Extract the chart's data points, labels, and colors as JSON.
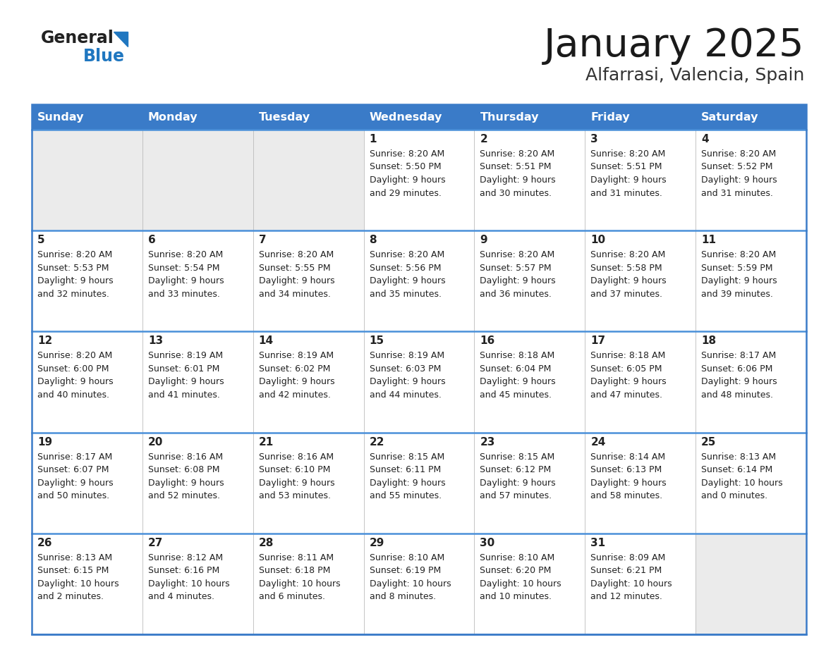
{
  "title": "January 2025",
  "subtitle": "Alfarrasi, Valencia, Spain",
  "days_of_week": [
    "Sunday",
    "Monday",
    "Tuesday",
    "Wednesday",
    "Thursday",
    "Friday",
    "Saturday"
  ],
  "header_bg": "#3A7BC8",
  "header_text_color": "#FFFFFF",
  "cell_bg_empty": "#EBEBEB",
  "cell_bg_data": "#FFFFFF",
  "cell_bg_alt": "#F5F5F5",
  "border_color": "#3A7BC8",
  "row_line_color": "#4A90D9",
  "text_color": "#222222",
  "title_color": "#1a1a1a",
  "subtitle_color": "#333333",
  "logo_general_color": "#222222",
  "logo_blue_color": "#2077C0",
  "weeks": [
    [
      {
        "day": null,
        "sunrise": null,
        "sunset": null,
        "daylight_line1": null,
        "daylight_line2": null
      },
      {
        "day": null,
        "sunrise": null,
        "sunset": null,
        "daylight_line1": null,
        "daylight_line2": null
      },
      {
        "day": null,
        "sunrise": null,
        "sunset": null,
        "daylight_line1": null,
        "daylight_line2": null
      },
      {
        "day": 1,
        "sunrise": "8:20 AM",
        "sunset": "5:50 PM",
        "daylight_line1": "9 hours",
        "daylight_line2": "and 29 minutes."
      },
      {
        "day": 2,
        "sunrise": "8:20 AM",
        "sunset": "5:51 PM",
        "daylight_line1": "9 hours",
        "daylight_line2": "and 30 minutes."
      },
      {
        "day": 3,
        "sunrise": "8:20 AM",
        "sunset": "5:51 PM",
        "daylight_line1": "9 hours",
        "daylight_line2": "and 31 minutes."
      },
      {
        "day": 4,
        "sunrise": "8:20 AM",
        "sunset": "5:52 PM",
        "daylight_line1": "9 hours",
        "daylight_line2": "and 31 minutes."
      }
    ],
    [
      {
        "day": 5,
        "sunrise": "8:20 AM",
        "sunset": "5:53 PM",
        "daylight_line1": "9 hours",
        "daylight_line2": "and 32 minutes."
      },
      {
        "day": 6,
        "sunrise": "8:20 AM",
        "sunset": "5:54 PM",
        "daylight_line1": "9 hours",
        "daylight_line2": "and 33 minutes."
      },
      {
        "day": 7,
        "sunrise": "8:20 AM",
        "sunset": "5:55 PM",
        "daylight_line1": "9 hours",
        "daylight_line2": "and 34 minutes."
      },
      {
        "day": 8,
        "sunrise": "8:20 AM",
        "sunset": "5:56 PM",
        "daylight_line1": "9 hours",
        "daylight_line2": "and 35 minutes."
      },
      {
        "day": 9,
        "sunrise": "8:20 AM",
        "sunset": "5:57 PM",
        "daylight_line1": "9 hours",
        "daylight_line2": "and 36 minutes."
      },
      {
        "day": 10,
        "sunrise": "8:20 AM",
        "sunset": "5:58 PM",
        "daylight_line1": "9 hours",
        "daylight_line2": "and 37 minutes."
      },
      {
        "day": 11,
        "sunrise": "8:20 AM",
        "sunset": "5:59 PM",
        "daylight_line1": "9 hours",
        "daylight_line2": "and 39 minutes."
      }
    ],
    [
      {
        "day": 12,
        "sunrise": "8:20 AM",
        "sunset": "6:00 PM",
        "daylight_line1": "9 hours",
        "daylight_line2": "and 40 minutes."
      },
      {
        "day": 13,
        "sunrise": "8:19 AM",
        "sunset": "6:01 PM",
        "daylight_line1": "9 hours",
        "daylight_line2": "and 41 minutes."
      },
      {
        "day": 14,
        "sunrise": "8:19 AM",
        "sunset": "6:02 PM",
        "daylight_line1": "9 hours",
        "daylight_line2": "and 42 minutes."
      },
      {
        "day": 15,
        "sunrise": "8:19 AM",
        "sunset": "6:03 PM",
        "daylight_line1": "9 hours",
        "daylight_line2": "and 44 minutes."
      },
      {
        "day": 16,
        "sunrise": "8:18 AM",
        "sunset": "6:04 PM",
        "daylight_line1": "9 hours",
        "daylight_line2": "and 45 minutes."
      },
      {
        "day": 17,
        "sunrise": "8:18 AM",
        "sunset": "6:05 PM",
        "daylight_line1": "9 hours",
        "daylight_line2": "and 47 minutes."
      },
      {
        "day": 18,
        "sunrise": "8:17 AM",
        "sunset": "6:06 PM",
        "daylight_line1": "9 hours",
        "daylight_line2": "and 48 minutes."
      }
    ],
    [
      {
        "day": 19,
        "sunrise": "8:17 AM",
        "sunset": "6:07 PM",
        "daylight_line1": "9 hours",
        "daylight_line2": "and 50 minutes."
      },
      {
        "day": 20,
        "sunrise": "8:16 AM",
        "sunset": "6:08 PM",
        "daylight_line1": "9 hours",
        "daylight_line2": "and 52 minutes."
      },
      {
        "day": 21,
        "sunrise": "8:16 AM",
        "sunset": "6:10 PM",
        "daylight_line1": "9 hours",
        "daylight_line2": "and 53 minutes."
      },
      {
        "day": 22,
        "sunrise": "8:15 AM",
        "sunset": "6:11 PM",
        "daylight_line1": "9 hours",
        "daylight_line2": "and 55 minutes."
      },
      {
        "day": 23,
        "sunrise": "8:15 AM",
        "sunset": "6:12 PM",
        "daylight_line1": "9 hours",
        "daylight_line2": "and 57 minutes."
      },
      {
        "day": 24,
        "sunrise": "8:14 AM",
        "sunset": "6:13 PM",
        "daylight_line1": "9 hours",
        "daylight_line2": "and 58 minutes."
      },
      {
        "day": 25,
        "sunrise": "8:13 AM",
        "sunset": "6:14 PM",
        "daylight_line1": "10 hours",
        "daylight_line2": "and 0 minutes."
      }
    ],
    [
      {
        "day": 26,
        "sunrise": "8:13 AM",
        "sunset": "6:15 PM",
        "daylight_line1": "10 hours",
        "daylight_line2": "and 2 minutes."
      },
      {
        "day": 27,
        "sunrise": "8:12 AM",
        "sunset": "6:16 PM",
        "daylight_line1": "10 hours",
        "daylight_line2": "and 4 minutes."
      },
      {
        "day": 28,
        "sunrise": "8:11 AM",
        "sunset": "6:18 PM",
        "daylight_line1": "10 hours",
        "daylight_line2": "and 6 minutes."
      },
      {
        "day": 29,
        "sunrise": "8:10 AM",
        "sunset": "6:19 PM",
        "daylight_line1": "10 hours",
        "daylight_line2": "and 8 minutes."
      },
      {
        "day": 30,
        "sunrise": "8:10 AM",
        "sunset": "6:20 PM",
        "daylight_line1": "10 hours",
        "daylight_line2": "and 10 minutes."
      },
      {
        "day": 31,
        "sunrise": "8:09 AM",
        "sunset": "6:21 PM",
        "daylight_line1": "10 hours",
        "daylight_line2": "and 12 minutes."
      },
      {
        "day": null,
        "sunrise": null,
        "sunset": null,
        "daylight_line1": null,
        "daylight_line2": null
      }
    ]
  ]
}
